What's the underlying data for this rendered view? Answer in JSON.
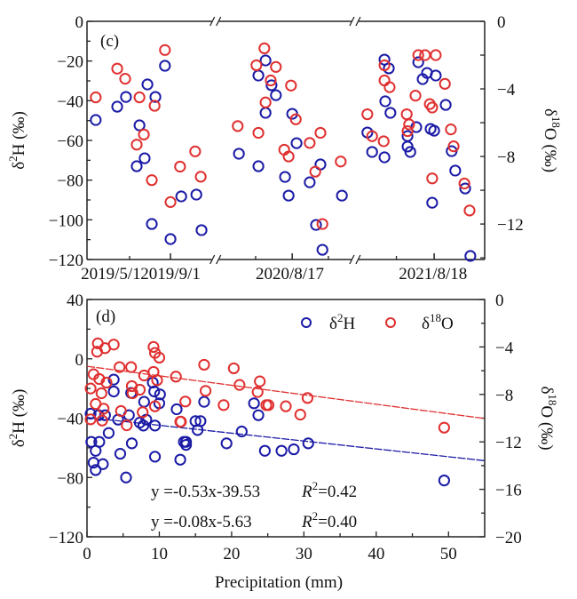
{
  "colors": {
    "d2H": "#1a1aa6",
    "d18O": "#e03030",
    "axis": "#222222"
  },
  "chart_data": [
    {
      "panel": "(c)",
      "type": "scatter",
      "xlabel": "",
      "x_axis_note": "broken time axis; x given as normalized position along the axis (0-1)",
      "x_tick_labels": [
        "2019/5/1",
        "2019/9/1",
        "2020/8/17",
        "2021/8/18"
      ],
      "x_tick_label_pos": [
        0.06,
        0.21,
        0.51,
        0.87
      ],
      "x_major_ticks": [
        0.21,
        0.516,
        0.873
      ],
      "x_minor_ticks": [
        0.107,
        0.424,
        0.607,
        0.778
      ],
      "axis_breaks": [
        0.323,
        0.674
      ],
      "ylabel_left": "δ²H (‰)",
      "ylabel_right": "δ¹⁸O (‰)",
      "ylim_left": [
        -120,
        0
      ],
      "ylim_right": [
        -14.1,
        0
      ],
      "yticks_left": [
        0,
        -20,
        -40,
        -60,
        -80,
        -100,
        -120
      ],
      "yticks_left_labels": [
        "0",
        "−20",
        "−40",
        "−60",
        "−80",
        "−100",
        "−120"
      ],
      "yticks_right": [
        0,
        -4,
        -8,
        -12
      ],
      "yticks_right_labels": [
        "0",
        "−4",
        "−8",
        "−12"
      ],
      "series": [
        {
          "name": "δ2H",
          "axis": "left",
          "x": [
            0.022,
            0.076,
            0.098,
            0.152,
            0.172,
            0.196,
            0.132,
            0.145,
            0.125,
            0.163,
            0.21,
            0.237,
            0.275,
            0.288,
            0.449,
            0.431,
            0.464,
            0.475,
            0.449,
            0.516,
            0.382,
            0.431,
            0.527,
            0.587,
            0.56,
            0.498,
            0.507,
            0.641,
            0.576,
            0.592,
            0.705,
            0.717,
            0.748,
            0.748,
            0.759,
            0.75,
            0.763,
            0.806,
            0.806,
            0.813,
            0.828,
            0.833,
            0.844,
            0.855,
            0.877,
            0.902,
            0.864,
            0.873,
            0.917,
            0.868,
            0.926,
            0.951,
            0.964
          ],
          "y": [
            -49.7,
            -43.0,
            -38.1,
            -31.8,
            -38.1,
            -22.4,
            -52.4,
            -69.0,
            -73.0,
            -102.1,
            -109.7,
            -88.2,
            -87.3,
            -105.2,
            -19.7,
            -27.3,
            -32.2,
            -37.2,
            -46.1,
            -46.6,
            -66.7,
            -73.0,
            -61.4,
            -72.1,
            -81.1,
            -78.4,
            -87.8,
            -87.8,
            -102.6,
            -115.1,
            -56.0,
            -65.8,
            -68.5,
            -19.3,
            -23.7,
            -40.3,
            -46.1,
            -57.8,
            -63.1,
            -65.8,
            -53.3,
            -20.6,
            -29.1,
            -26.0,
            -27.3,
            -42.1,
            -54.2,
            -55.1,
            -65.4,
            -91.4,
            -75.2,
            -84.2,
            -118.2
          ]
        },
        {
          "name": "δ18O",
          "axis": "right",
          "x": [
            0.022,
            0.076,
            0.096,
            0.132,
            0.17,
            0.196,
            0.143,
            0.125,
            0.163,
            0.21,
            0.234,
            0.272,
            0.286,
            0.446,
            0.426,
            0.475,
            0.462,
            0.449,
            0.513,
            0.525,
            0.379,
            0.431,
            0.587,
            0.56,
            0.496,
            0.507,
            0.574,
            0.638,
            0.592,
            0.705,
            0.717,
            0.746,
            0.748,
            0.748,
            0.761,
            0.804,
            0.81,
            0.806,
            0.826,
            0.833,
            0.85,
            0.877,
            0.9,
            0.862,
            0.868,
            0.915,
            0.922,
            0.868,
            0.949,
            0.962
          ],
          "y": [
            -4.5,
            -2.8,
            -3.4,
            -4.5,
            -5.0,
            -1.7,
            -6.7,
            -7.3,
            -9.4,
            -10.7,
            -8.6,
            -7.7,
            -9.2,
            -1.6,
            -2.6,
            -2.7,
            -3.5,
            -4.8,
            -3.8,
            -5.8,
            -6.2,
            -6.6,
            -6.6,
            -7.2,
            -7.6,
            -8.0,
            -8.9,
            -8.3,
            -12.0,
            -5.5,
            -6.8,
            -7.1,
            -2.6,
            -3.5,
            -3.9,
            -5.5,
            -6.1,
            -6.5,
            -4.4,
            -2.0,
            -2.0,
            -2.0,
            -3.7,
            -4.9,
            -5.1,
            -6.4,
            -7.4,
            -9.3,
            -9.6,
            -11.2
          ]
        }
      ]
    },
    {
      "panel": "(d)",
      "type": "scatter",
      "xlabel": "Precipitation (mm)",
      "xlim": [
        0,
        55
      ],
      "xticks": [
        0,
        10,
        20,
        30,
        40,
        50
      ],
      "xticks_labels": [
        "0",
        "10",
        "20",
        "30",
        "40",
        "50"
      ],
      "x_minor_ticks": [
        5,
        15,
        25,
        35,
        45
      ],
      "ylabel_left": "δ²H (‰)",
      "ylabel_right": "δ¹⁸O (‰)",
      "ylim_left": [
        -120,
        40
      ],
      "ylim_right": [
        -20,
        0
      ],
      "yticks_left": [
        40,
        0,
        -40,
        -80,
        -120
      ],
      "yticks_left_labels": [
        "40",
        "0",
        "−40",
        "−80",
        "−120"
      ],
      "yticks_left_minor": [
        20,
        -20,
        -60,
        -100
      ],
      "yticks_right": [
        0,
        -4,
        -8,
        -12,
        -16,
        -20
      ],
      "yticks_right_labels": [
        "0",
        "−4",
        "−8",
        "−12",
        "−16",
        "−20"
      ],
      "yticks_right_minor": [
        -2,
        -6,
        -10,
        -14,
        -18
      ],
      "legend": {
        "placement": "top-right",
        "entries": [
          "δ2H",
          "δ18O"
        ]
      },
      "series": [
        {
          "name": "δ2H",
          "axis": "left",
          "x": [
            3.7,
            3.7,
            6.1,
            9.1,
            9.3,
            10.1,
            10.0,
            7.9,
            12.4,
            0.5,
            1.6,
            2.5,
            5.8,
            8.2,
            4.3,
            7.3,
            3.0,
            1.7,
            0.6,
            7.8,
            9.4,
            6.2,
            13.4,
            1.2,
            0.9,
            2.2,
            4.6,
            9.4,
            12.9,
            1.2,
            5.4,
            16.2,
            15.7,
            23.1,
            15.0,
            15.3,
            21.4,
            23.7,
            13.7,
            13.7,
            19.3,
            24.6,
            26.9,
            28.6,
            30.6,
            49.4
          ],
          "y": [
            -14,
            -22,
            -23,
            -16,
            -22,
            -24,
            -30,
            -29,
            -34,
            -37,
            -38,
            -38,
            -38,
            -41,
            -41,
            -43,
            -50,
            -56,
            -56,
            -45,
            -45,
            -57,
            -56,
            -62,
            -70,
            -71,
            -64,
            -66,
            -68,
            -75,
            -80,
            -29,
            -42,
            -30,
            -42,
            -48,
            -49,
            -38,
            -56,
            -58,
            -57,
            -62,
            -62,
            -61,
            -57,
            -82
          ]
        },
        {
          "name": "δ18O",
          "axis": "right",
          "x": [
            1.5,
            3.7,
            1.4,
            2.5,
            9.2,
            9.4,
            10.0,
            4.5,
            6.1,
            0.9,
            1.7,
            2.7,
            7.9,
            9.2,
            9.7,
            12.3,
            6.2,
            7.3,
            0.5,
            2.0,
            6.3,
            13.6,
            1.2,
            2.3,
            4.7,
            7.7,
            9.4,
            0.5,
            2.1,
            12.9,
            5.5,
            16.2,
            20.3,
            21.1,
            23.9,
            23.6,
            16.4,
            25.1,
            18.9,
            24.8,
            27.5,
            29.5,
            30.5,
            13.0,
            49.4
          ],
          "y": [
            -3.7,
            -3.8,
            -4.4,
            -4.1,
            -4.0,
            -4.5,
            -4.9,
            -5.7,
            -5.7,
            -6.3,
            -6.7,
            -7.0,
            -6.4,
            -6.1,
            -6.8,
            -6.5,
            -7.3,
            -7.6,
            -7.5,
            -7.9,
            -7.9,
            -8.6,
            -8.8,
            -9.2,
            -9.4,
            -9.5,
            -9.0,
            -10.1,
            -10.2,
            -10.3,
            -10.6,
            -5.5,
            -5.8,
            -7.2,
            -6.9,
            -7.8,
            -7.7,
            -8.9,
            -8.9,
            -8.9,
            -9.0,
            -9.7,
            -8.3,
            -10.3,
            -10.8
          ]
        }
      ],
      "fit_lines": [
        {
          "series": "δ2H",
          "equation": "y =-0.53x-39.53",
          "r2": "0.42",
          "slope": -0.53,
          "intercept": -39.53,
          "axis": "left"
        },
        {
          "series": "δ18O",
          "equation": "y =-0.08x-5.63",
          "r2": "0.40",
          "slope": -0.08,
          "intercept": -5.63,
          "axis": "right"
        }
      ]
    }
  ]
}
